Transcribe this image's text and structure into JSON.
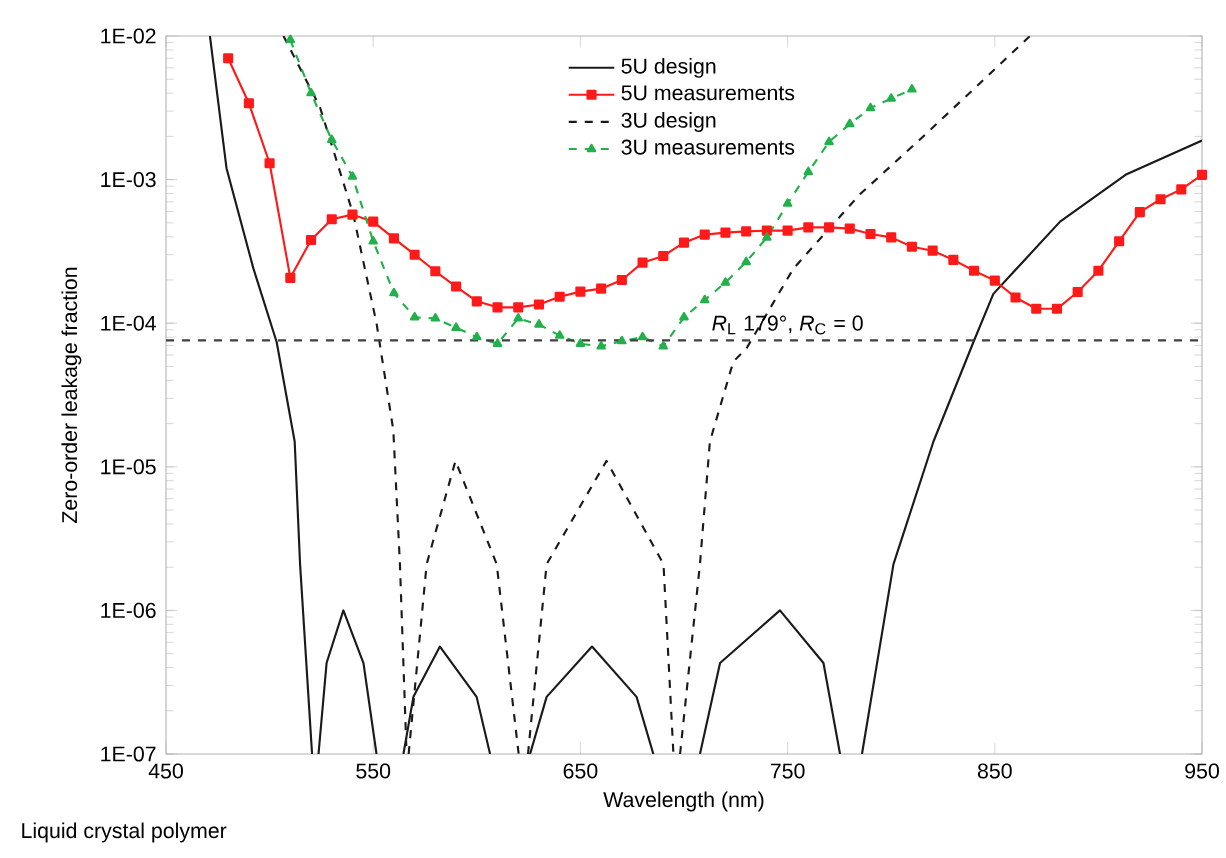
{
  "chart_data": {
    "type": "line",
    "xlabel": "Wavelength (nm)",
    "ylabel": "Zero-order leakage fraction",
    "log": "y",
    "grid": false,
    "legend": "top",
    "xlim": [
      450,
      950
    ],
    "xticks": [
      450,
      550,
      650,
      750,
      850,
      950
    ],
    "ylim": [
      1e-07,
      0.01
    ],
    "yticks": [
      {
        "value": 1e-07,
        "label": "1E-07"
      },
      {
        "value": 1e-06,
        "label": "1E-06"
      },
      {
        "value": 1e-05,
        "label": "1E-05"
      },
      {
        "value": 0.0001,
        "label": "1E-04"
      },
      {
        "value": 0.001,
        "label": "1E-03"
      },
      {
        "value": 0.01,
        "label": "1E-02"
      }
    ],
    "series": [
      {
        "name": "5U design",
        "color": "#1a1a1a",
        "line_style": "solid",
        "marker": "none",
        "x": [
          471.2,
          479.2,
          492.2,
          503.4,
          512.1,
          514.7,
          520.5,
          522,
          523.6,
          527.5,
          535.6,
          545.3,
          551.6,
          558,
          564.6,
          569.4,
          582.2,
          599.9,
          606.4,
          616,
          625.7,
          633.7,
          655.6,
          677.1,
          685.2,
          696,
          707.7,
          717.4,
          746.3,
          767.3,
          775.3,
          780,
          785.9,
          801.1,
          820.4,
          839.7,
          849.3,
          881.5,
          913.6,
          950
        ],
        "values": [
          0.01,
          0.0012,
          0.00024,
          7.4e-05,
          1.5e-05,
          2.1e-06,
          1e-07,
          null,
          1e-07,
          4.3e-07,
          1e-06,
          4.3e-07,
          1e-07,
          null,
          1e-07,
          2.5e-07,
          5.6e-07,
          2.5e-07,
          1e-07,
          null,
          1e-07,
          2.5e-07,
          5.6e-07,
          2.5e-07,
          1e-07,
          null,
          1e-07,
          4.3e-07,
          1e-06,
          4.3e-07,
          1e-07,
          null,
          1e-07,
          2.1e-06,
          1.5e-05,
          7.4e-05,
          0.00016,
          0.00051,
          0.00109,
          0.00187
        ]
      },
      {
        "name": "5U measurements",
        "color": "#ff1a1a",
        "line_style": "solid",
        "marker": "square",
        "x": [
          480,
          490,
          500,
          510,
          520,
          530,
          540,
          550,
          560,
          570,
          580,
          590,
          600,
          610,
          620,
          630,
          640,
          650,
          660,
          670,
          680,
          690,
          700,
          710,
          720,
          730,
          740,
          750,
          760,
          770,
          780,
          790,
          800,
          810,
          820,
          830,
          840,
          850,
          860,
          870,
          880,
          890,
          900,
          910,
          920,
          930,
          940,
          950
        ],
        "values": [
          0.007,
          0.0034,
          0.0013,
          0.000207,
          0.00038,
          0.00053,
          0.00057,
          0.00051,
          0.00039,
          0.0003,
          0.00023,
          0.00018,
          0.000142,
          0.000129,
          0.000129,
          0.000135,
          0.000153,
          0.000166,
          0.000174,
          0.0002,
          0.000264,
          0.000294,
          0.000364,
          0.000414,
          0.000427,
          0.000436,
          0.000441,
          0.000441,
          0.000465,
          0.000465,
          0.000456,
          0.000418,
          0.000396,
          0.000341,
          0.00032,
          0.000276,
          0.000232,
          0.000198,
          0.000151,
          0.000126,
          0.000126,
          0.000165,
          0.000232,
          0.000372,
          0.000594,
          0.00073,
          0.000855,
          0.00108
        ]
      },
      {
        "name": "3U design",
        "color": "#1a1a1a",
        "line_style": "dashed",
        "marker": "none",
        "x": [
          506.7,
          524.3,
          540.4,
          551.6,
          559.7,
          562.9,
          566.1,
          566.6,
          567.1,
          575.8,
          589.7,
          609.6,
          620.2,
          622,
          624.7,
          633.7,
          662.6,
          690.1,
          694.9,
          696,
          698.1,
          707.7,
          712.5,
          723.8,
          730.2,
          752.8,
          784.9,
          817.1,
          867
        ],
        "values": [
          0.01,
          0.0032,
          0.00057,
          0.0001,
          1.8e-05,
          2.1e-06,
          1e-07,
          null,
          1e-07,
          2.1e-06,
          1.1e-05,
          2.1e-06,
          1e-07,
          null,
          1e-07,
          2.1e-06,
          1.1e-05,
          2.1e-06,
          1e-07,
          null,
          1e-07,
          2.1e-06,
          1.5e-05,
          5.4e-05,
          6.7e-05,
          0.00024,
          0.00079,
          0.0021,
          0.01
        ]
      },
      {
        "name": "3U measurements",
        "color": "#22b04a",
        "line_style": "dashed",
        "marker": "triangle",
        "x": [
          510,
          520,
          530,
          540,
          550,
          560,
          570,
          580,
          590,
          600,
          610,
          620,
          630,
          640,
          650,
          660,
          670,
          680,
          690,
          700,
          710,
          720,
          730,
          740,
          750,
          760,
          770,
          780,
          790,
          800,
          810
        ],
        "values": [
          0.0094,
          0.004,
          0.00189,
          0.00105,
          0.000372,
          0.000162,
          0.00011,
          0.000108,
          9.3e-05,
          8e-05,
          7.2e-05,
          0.000108,
          9.8e-05,
          8.2e-05,
          7.2e-05,
          6.9e-05,
          7.5e-05,
          8e-05,
          6.9e-05,
          0.00011,
          0.000145,
          0.000192,
          0.000267,
          0.000395,
          0.00068,
          0.00113,
          0.00183,
          0.00244,
          0.00315,
          0.00367,
          0.00425
        ]
      }
    ],
    "ref_lines": [
      {
        "axis": "y",
        "value": 7.6e-05,
        "label": "*R*$_{L}$ 179°, *R*$_{C}$ = 0",
        "color": "#404040",
        "line_style": "dashed"
      }
    ],
    "annotations": [
      "Liquid crystal polymer"
    ]
  }
}
